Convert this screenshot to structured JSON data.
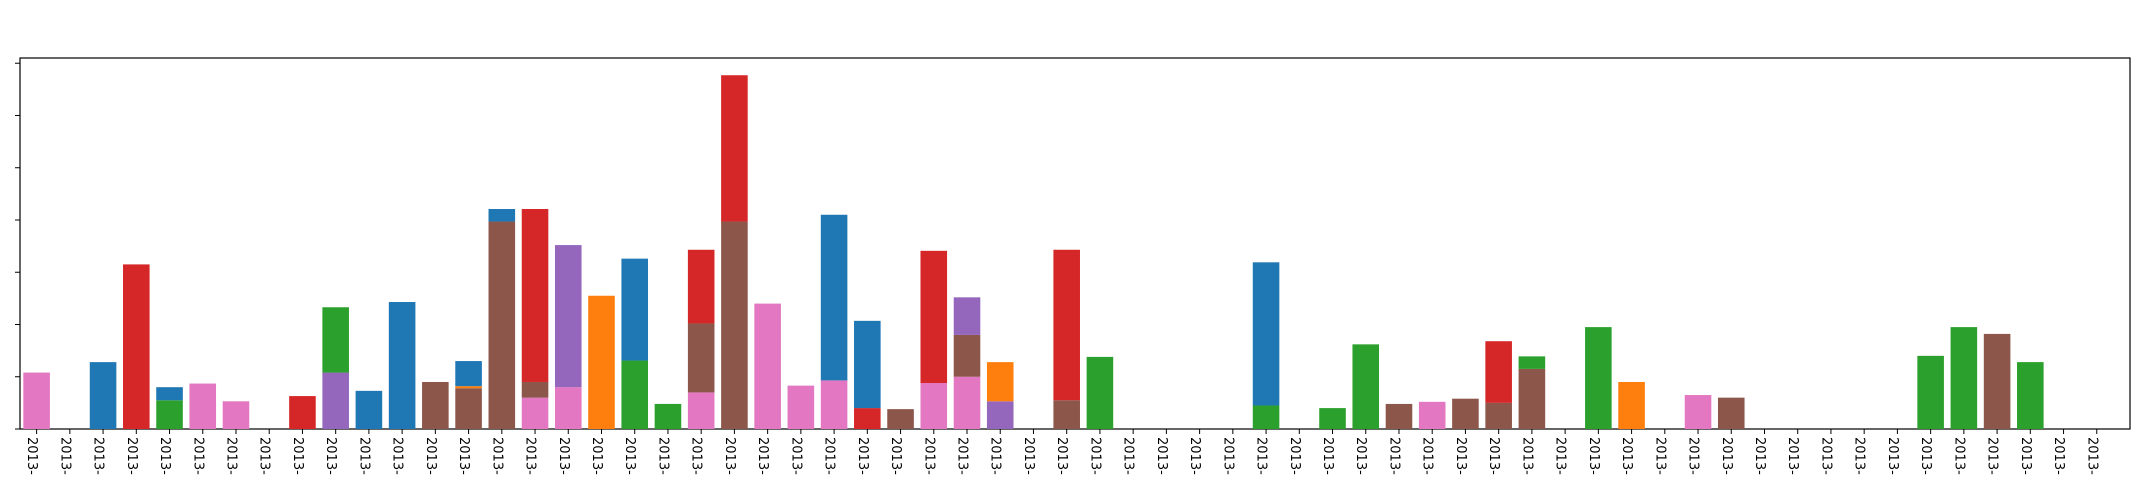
{
  "chart_data": {
    "type": "bar",
    "stacked": true,
    "grid": false,
    "legend": "none",
    "ylim": [
      0,
      710
    ],
    "x_tick_label": "2013-",
    "colors": {
      "blue": "#1f77b4",
      "orange": "#ff7f0e",
      "green": "#2ca02c",
      "red": "#d62728",
      "purple": "#9467bd",
      "brown": "#8c564b",
      "pink": "#e377c2"
    },
    "bars": [
      [
        {
          "c": "pink",
          "v": 108
        }
      ],
      [],
      [
        {
          "c": "blue",
          "v": 128
        }
      ],
      [
        {
          "c": "red",
          "v": 315
        }
      ],
      [
        {
          "c": "green",
          "v": 55
        },
        {
          "c": "blue",
          "v": 25
        }
      ],
      [
        {
          "c": "pink",
          "v": 87
        }
      ],
      [
        {
          "c": "pink",
          "v": 53
        }
      ],
      [],
      [
        {
          "c": "red",
          "v": 63
        }
      ],
      [
        {
          "c": "purple",
          "v": 108
        },
        {
          "c": "green",
          "v": 125
        }
      ],
      [
        {
          "c": "blue",
          "v": 73
        }
      ],
      [
        {
          "c": "blue",
          "v": 243
        }
      ],
      [
        {
          "c": "brown",
          "v": 90
        }
      ],
      [
        {
          "c": "brown",
          "v": 78
        },
        {
          "c": "orange",
          "v": 4
        },
        {
          "c": "blue",
          "v": 48
        }
      ],
      [
        {
          "c": "brown",
          "v": 397
        },
        {
          "c": "blue",
          "v": 24
        }
      ],
      [
        {
          "c": "pink",
          "v": 60
        },
        {
          "c": "brown",
          "v": 30
        },
        {
          "c": "red",
          "v": 331
        }
      ],
      [
        {
          "c": "pink",
          "v": 80
        },
        {
          "c": "purple",
          "v": 272
        }
      ],
      [
        {
          "c": "orange",
          "v": 255
        }
      ],
      [
        {
          "c": "green",
          "v": 131
        },
        {
          "c": "blue",
          "v": 195
        }
      ],
      [
        {
          "c": "green",
          "v": 48
        }
      ],
      [
        {
          "c": "pink",
          "v": 70
        },
        {
          "c": "brown",
          "v": 132
        },
        {
          "c": "red",
          "v": 141
        }
      ],
      [
        {
          "c": "brown",
          "v": 397
        },
        {
          "c": "red",
          "v": 280
        }
      ],
      [
        {
          "c": "pink",
          "v": 240
        }
      ],
      [
        {
          "c": "pink",
          "v": 83
        }
      ],
      [
        {
          "c": "pink",
          "v": 93
        },
        {
          "c": "blue",
          "v": 317
        }
      ],
      [
        {
          "c": "red",
          "v": 40
        },
        {
          "c": "blue",
          "v": 167
        }
      ],
      [
        {
          "c": "brown",
          "v": 38
        }
      ],
      [
        {
          "c": "pink",
          "v": 88
        },
        {
          "c": "red",
          "v": 253
        }
      ],
      [
        {
          "c": "pink",
          "v": 100
        },
        {
          "c": "brown",
          "v": 80
        },
        {
          "c": "purple",
          "v": 72
        }
      ],
      [
        {
          "c": "purple",
          "v": 53
        },
        {
          "c": "orange",
          "v": 75
        }
      ],
      [],
      [
        {
          "c": "brown",
          "v": 55
        },
        {
          "c": "red",
          "v": 288
        }
      ],
      [
        {
          "c": "green",
          "v": 138
        }
      ],
      [],
      [],
      [],
      [],
      [
        {
          "c": "green",
          "v": 45
        },
        {
          "c": "blue",
          "v": 274
        }
      ],
      [],
      [
        {
          "c": "green",
          "v": 40
        }
      ],
      [
        {
          "c": "green",
          "v": 162
        }
      ],
      [
        {
          "c": "brown",
          "v": 48
        }
      ],
      [
        {
          "c": "pink",
          "v": 52
        }
      ],
      [
        {
          "c": "brown",
          "v": 58
        }
      ],
      [
        {
          "c": "brown",
          "v": 50
        },
        {
          "c": "red",
          "v": 118
        }
      ],
      [
        {
          "c": "brown",
          "v": 115
        },
        {
          "c": "green",
          "v": 24
        }
      ],
      [],
      [
        {
          "c": "green",
          "v": 195
        }
      ],
      [
        {
          "c": "orange",
          "v": 90
        }
      ],
      [],
      [
        {
          "c": "pink",
          "v": 65
        }
      ],
      [
        {
          "c": "brown",
          "v": 60
        }
      ],
      [],
      [],
      [],
      [],
      [],
      [
        {
          "c": "green",
          "v": 140
        }
      ],
      [
        {
          "c": "green",
          "v": 195
        }
      ],
      [
        {
          "c": "brown",
          "v": 182
        }
      ],
      [
        {
          "c": "green",
          "v": 128
        }
      ],
      [],
      []
    ]
  }
}
